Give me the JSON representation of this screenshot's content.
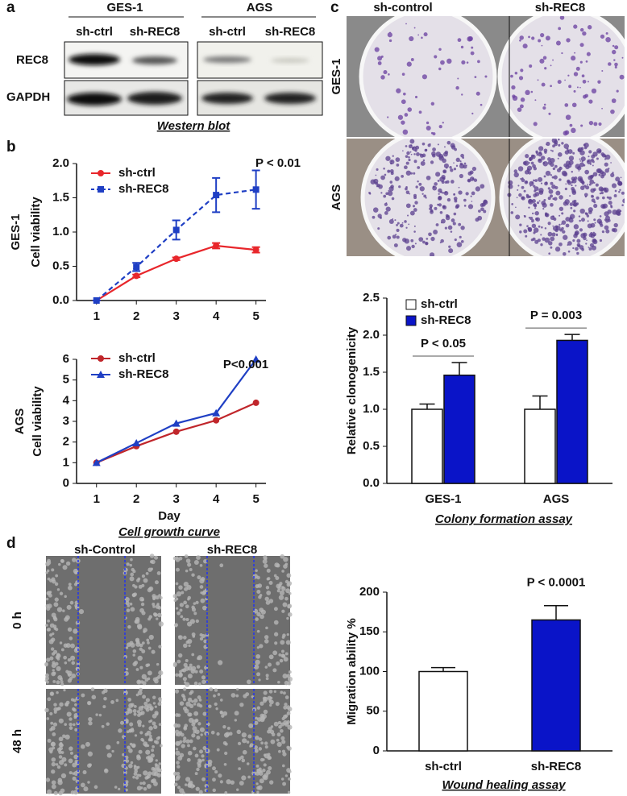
{
  "panel_labels": [
    "a",
    "b",
    "c",
    "d"
  ],
  "western_blot": {
    "groups": [
      "GES-1",
      "AGS"
    ],
    "lanes": [
      "sh-ctrl",
      "sh-REC8",
      "sh-ctrl",
      "sh-REC8"
    ],
    "rows": [
      "REC8",
      "GAPDH"
    ],
    "caption": "Western blot"
  },
  "colony_images": {
    "columns": [
      "sh-control",
      "sh-REC8"
    ],
    "rows": [
      "GES-1",
      "AGS"
    ]
  },
  "wound_images": {
    "columns": [
      "sh-Control",
      "sh-REC8"
    ],
    "rows": [
      "0 h",
      "48 h"
    ]
  },
  "chart_data": [
    {
      "type": "line",
      "row_label": "GES-1",
      "ylabel": "Cell viability",
      "annotation": "P < 0.01",
      "x": [
        1,
        2,
        3,
        4,
        5
      ],
      "xlim": [
        0.5,
        5.25
      ],
      "xticks": [
        1,
        2,
        3,
        4,
        5
      ],
      "ylim": [
        0,
        2
      ],
      "yticks": [
        {
          "value": 0,
          "label": "0.0"
        },
        0.5,
        {
          "value": 1,
          "label": "1.0"
        },
        1.5,
        {
          "value": 2,
          "label": "2.0"
        }
      ],
      "series": [
        {
          "name": "sh-ctrl",
          "color": "#e8262b",
          "marker": "circle",
          "dashed": false,
          "values": [
            0,
            0.36,
            0.61,
            0.8,
            0.74
          ],
          "errors": [
            0,
            0.02,
            0.02,
            0.04,
            0.04
          ]
        },
        {
          "name": "sh-REC8",
          "color": "#1f3fc4",
          "marker": "square",
          "dashed": true,
          "values": [
            0,
            0.49,
            1.03,
            1.54,
            1.62
          ],
          "errors": [
            0,
            0.06,
            0.14,
            0.25,
            0.28
          ]
        }
      ]
    },
    {
      "type": "line",
      "row_label": "AGS",
      "ylabel": "Cell viability",
      "annotation": "P<0.001",
      "xlabel": "Day",
      "caption": "Cell growth curve",
      "x": [
        1,
        2,
        3,
        4,
        5
      ],
      "xlim": [
        0.5,
        5.25
      ],
      "xticks": [
        1,
        2,
        3,
        4,
        5
      ],
      "ylim": [
        0,
        6
      ],
      "yticks": [
        0,
        1,
        2,
        3,
        4,
        5,
        6
      ],
      "series": [
        {
          "name": "sh-ctrl",
          "color": "#c0262b",
          "marker": "circle",
          "dashed": false,
          "values": [
            1,
            1.8,
            2.5,
            3.05,
            3.9
          ]
        },
        {
          "name": "sh-REC8",
          "color": "#1f3fc4",
          "marker": "triangle",
          "dashed": false,
          "values": [
            1,
            1.95,
            2.9,
            3.4,
            6
          ]
        }
      ]
    },
    {
      "type": "bar",
      "ylabel": "Relative clonogenicity",
      "caption": "Colony formation assay",
      "annotations": [
        "P < 0.05",
        "P = 0.003"
      ],
      "categories": [
        "GES-1",
        "AGS"
      ],
      "ylim": [
        0,
        2.5
      ],
      "yticks": [
        {
          "value": 0,
          "label": "0.0"
        },
        0.5,
        {
          "value": 1,
          "label": "1.0"
        },
        1.5,
        {
          "value": 2,
          "label": "2.0"
        },
        2.5
      ],
      "series": [
        {
          "name": "sh-ctrl",
          "color": "#ffffff",
          "values": [
            1,
            1
          ],
          "errors": [
            0.07,
            0.18
          ]
        },
        {
          "name": "sh-REC8",
          "color": "#0a14c8",
          "values": [
            1.46,
            1.93
          ],
          "errors": [
            0.17,
            0.08
          ]
        }
      ]
    },
    {
      "type": "bar",
      "ylabel": "Migration ability %",
      "caption": "Wound healing assay",
      "annotations": [
        null,
        "P < 0.0001"
      ],
      "categories": [
        "sh-ctrl",
        "sh-REC8"
      ],
      "colors": [
        "#ffffff",
        "#0a14c8"
      ],
      "ylim": [
        0,
        200
      ],
      "yticks": [
        0,
        50,
        100,
        150,
        200
      ],
      "values": [
        100,
        165
      ],
      "errors": [
        5,
        18
      ]
    }
  ]
}
